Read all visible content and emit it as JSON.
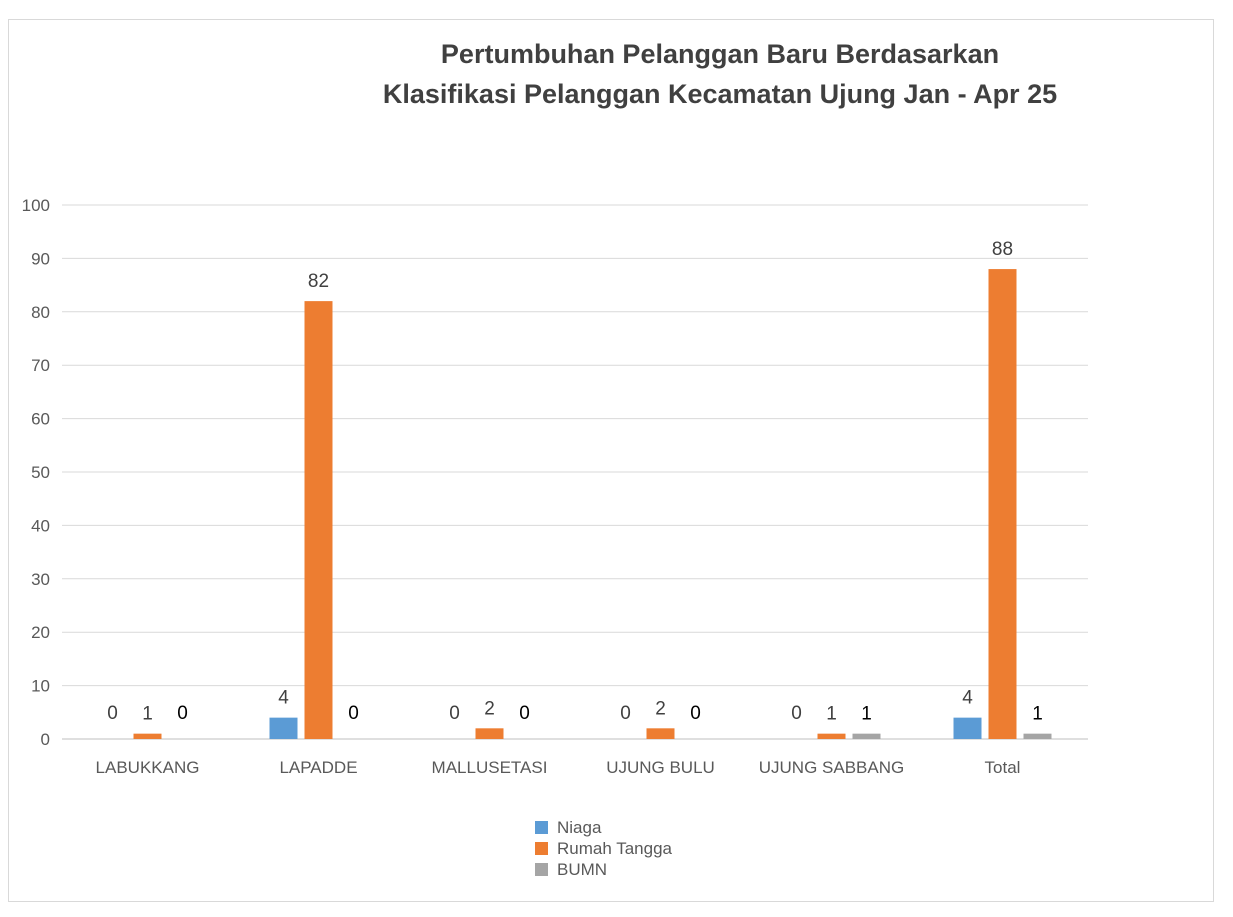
{
  "chart_data": {
    "type": "bar",
    "title_lines": [
      "Pertumbuhan Pelanggan Baru Berdasarkan",
      "Klasifikasi Pelanggan Kecamatan Ujung Jan - Apr 25"
    ],
    "categories": [
      "LABUKKANG",
      "LAPADDE",
      "MALLUSETASI",
      "UJUNG BULU",
      "UJUNG SABBANG",
      "Total"
    ],
    "series": [
      {
        "name": "Niaga",
        "values": [
          0,
          4,
          0,
          0,
          0,
          4
        ],
        "color": "#5b9bd5"
      },
      {
        "name": "Rumah Tangga",
        "values": [
          1,
          82,
          2,
          2,
          1,
          88
        ],
        "color": "#ed7d31"
      },
      {
        "name": "BUMN",
        "values": [
          0,
          0,
          0,
          0,
          1,
          1
        ],
        "color": "#a5a5a5"
      }
    ],
    "yticks": [
      0,
      10,
      20,
      30,
      40,
      50,
      60,
      70,
      80,
      90,
      100
    ],
    "ylim": [
      0,
      100
    ],
    "xlabel": "",
    "ylabel": "",
    "grid": true,
    "legend_position": "bottom"
  }
}
